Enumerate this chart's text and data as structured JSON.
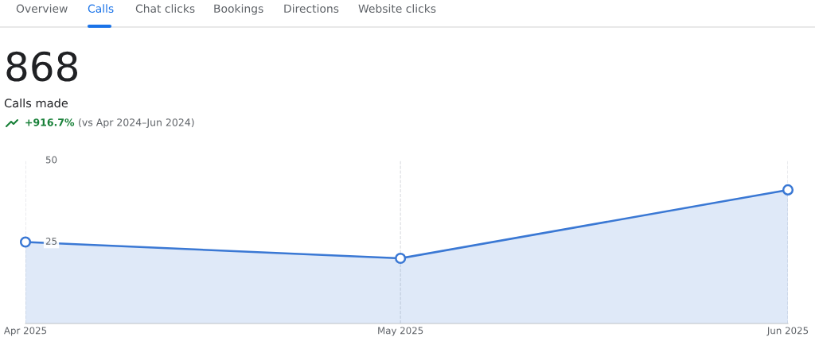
{
  "chart_data": {
    "type": "area",
    "title": "868",
    "subtitle": "Calls made",
    "annotations": [
      "Overview",
      "Calls",
      "Chat clicks",
      "Bookings",
      "Directions",
      "Website clicks",
      "+916.7%",
      "(vs Apr 2024–Jun 2024)"
    ],
    "x": [
      "2025-04",
      "2025-05",
      "2025-06"
    ],
    "series": [
      {
        "color": "#3a78d4",
        "values": [
          25,
          20,
          41
        ]
      }
    ],
    "xlim": [
      "2025-04",
      "2025-06"
    ],
    "xticks": [
      {
        "value": "2025-04",
        "label": "Apr 2025"
      },
      {
        "value": "2025-05",
        "label": "May 2025"
      },
      {
        "value": "2025-06",
        "label": "Jun 2025"
      }
    ],
    "ylim": [
      0,
      50
    ],
    "yticks": [
      25,
      50
    ],
    "grid": "x",
    "marker": "circle",
    "line_style": "solid",
    "legend": false
  }
}
